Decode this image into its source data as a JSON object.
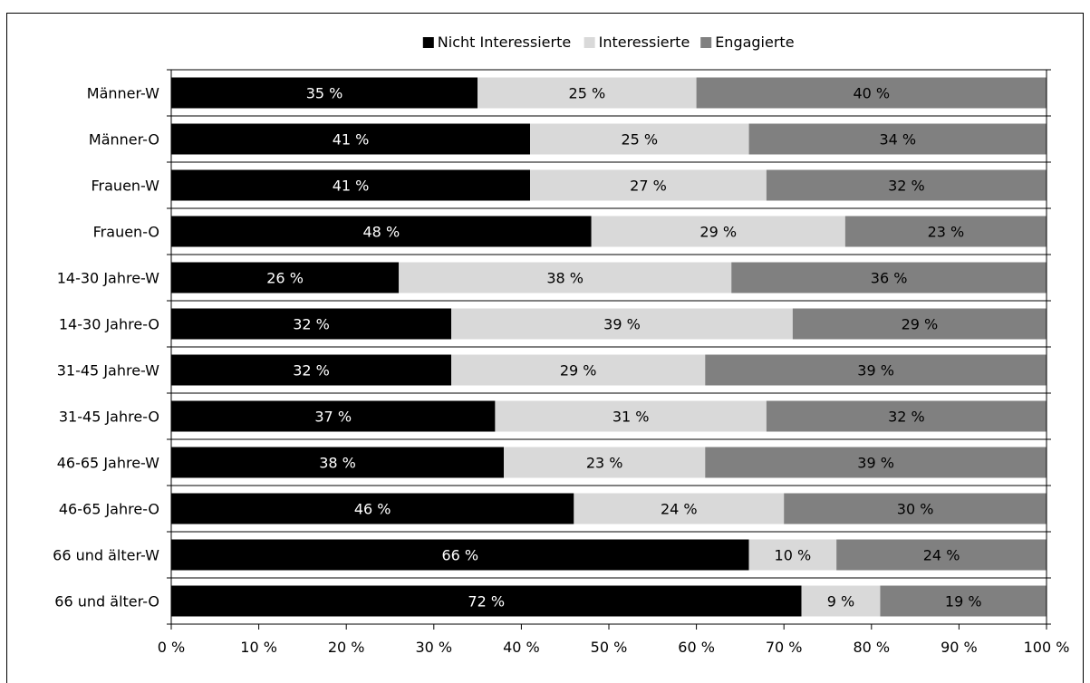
{
  "chart_data": {
    "type": "bar",
    "orientation": "horizontal",
    "stacked": true,
    "categories": [
      "Männer-W",
      "Männer-O",
      "Frauen-W",
      "Frauen-O",
      "14-30 Jahre-W",
      "14-30 Jahre-O",
      "31-45 Jahre-W",
      "31-45 Jahre-O",
      "46-65 Jahre-W",
      "46-65 Jahre-O",
      "66 und älter-W",
      "66 und älter-O"
    ],
    "series": [
      {
        "name": "Nicht Interessierte",
        "color": "#000000",
        "label_color": "#ffffff",
        "values": [
          35,
          41,
          41,
          48,
          26,
          32,
          32,
          37,
          38,
          46,
          66,
          72
        ]
      },
      {
        "name": "Interessierte",
        "color": "#d9d9d9",
        "label_color": "#000000",
        "values": [
          25,
          25,
          27,
          29,
          38,
          39,
          29,
          31,
          23,
          24,
          10,
          9
        ]
      },
      {
        "name": "Engagierte",
        "color": "#808080",
        "label_color": "#000000",
        "values": [
          40,
          34,
          32,
          23,
          36,
          29,
          39,
          32,
          39,
          30,
          24,
          19
        ]
      }
    ],
    "value_suffix": " %",
    "xlim": [
      0,
      100
    ],
    "xticks": [
      0,
      10,
      20,
      30,
      40,
      50,
      60,
      70,
      80,
      90,
      100
    ],
    "xtick_labels": [
      "0 %",
      "10 %",
      "20 %",
      "30 %",
      "40 %",
      "50 %",
      "60 %",
      "70 %",
      "80 %",
      "90 %",
      "100 %"
    ],
    "legend_position": "top-center",
    "grid": false
  }
}
